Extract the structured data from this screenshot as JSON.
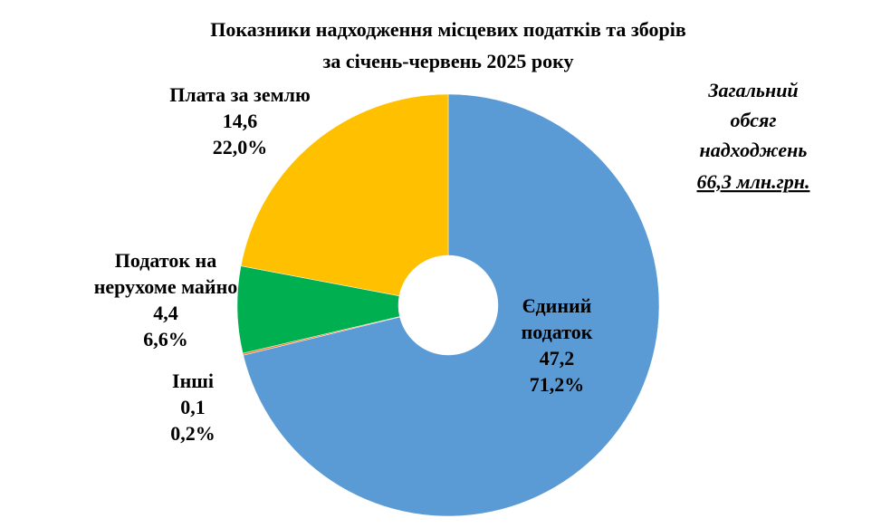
{
  "chart_data": {
    "type": "donut",
    "title": [
      "Показники надходження місцевих податків та зборів",
      "за січень-червень 2025 року"
    ],
    "categories": [
      [
        "Єдиний",
        "податок"
      ],
      [
        "Інші"
      ],
      [
        "Податок  на",
        "нерухоме майно"
      ],
      [
        "Плата  за землю"
      ]
    ],
    "values": [
      47.2,
      0.1,
      4.4,
      14.6
    ],
    "value_labels": [
      "47,2",
      "0,1",
      "4,4",
      "14,6"
    ],
    "percentages": [
      71.2,
      0.2,
      6.6,
      22.0
    ],
    "percentage_labels": [
      "71,2%",
      "0,2%",
      "6,6%",
      "22,0%"
    ],
    "colors": [
      "#5b9bd5",
      "#ed7d31",
      "#00b050",
      "#ffc000"
    ],
    "annotation": [
      "Загальний",
      "обсяг",
      "надходжень",
      "66,3 млн.грн."
    ]
  }
}
